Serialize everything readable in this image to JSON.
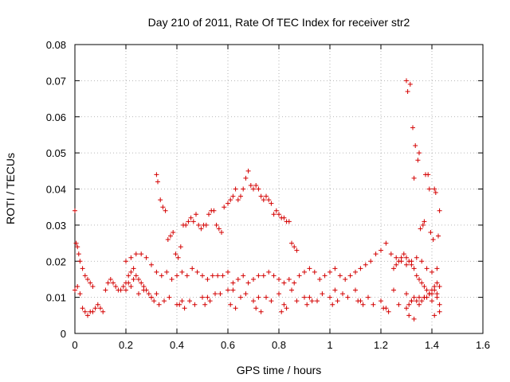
{
  "chart_data": {
    "type": "scatter",
    "title": "Day 210 of 2011, Rate Of TEC Index for receiver str2",
    "xlabel": "GPS time / hours",
    "ylabel": "ROTI / TECUs",
    "xlim": [
      0,
      1.6
    ],
    "ylim": [
      0,
      0.08
    ],
    "xticks": [
      0,
      0.2,
      0.4,
      0.6,
      0.8,
      1,
      1.2,
      1.4,
      1.6
    ],
    "xtick_labels": [
      "0",
      "0.2",
      "0.4",
      "0.6",
      "0.8",
      "1",
      "1.2",
      "1.4",
      "1.6"
    ],
    "yticks": [
      0,
      0.01,
      0.02,
      0.03,
      0.04,
      0.05,
      0.06,
      0.07,
      0.08
    ],
    "ytick_labels": [
      "0",
      "0.01",
      "0.02",
      "0.03",
      "0.04",
      "0.05",
      "0.06",
      "0.07",
      "0.08"
    ],
    "grid": true,
    "marker": "+",
    "color": "#d40000",
    "series": [
      {
        "name": "str2",
        "x": [
          0.0,
          0.005,
          0.01,
          0.015,
          0.02,
          0.03,
          0.04,
          0.05,
          0.06,
          0.07,
          0.0,
          0.01,
          0.02,
          0.03,
          0.04,
          0.05,
          0.06,
          0.07,
          0.08,
          0.09,
          0.1,
          0.11,
          0.12,
          0.13,
          0.14,
          0.15,
          0.16,
          0.17,
          0.18,
          0.19,
          0.2,
          0.21,
          0.22,
          0.23,
          0.24,
          0.25,
          0.26,
          0.27,
          0.28,
          0.29,
          0.3,
          0.32,
          0.325,
          0.335,
          0.345,
          0.355,
          0.365,
          0.375,
          0.385,
          0.395,
          0.405,
          0.415,
          0.425,
          0.435,
          0.445,
          0.455,
          0.465,
          0.475,
          0.485,
          0.495,
          0.505,
          0.515,
          0.525,
          0.535,
          0.545,
          0.555,
          0.565,
          0.575,
          0.585,
          0.6,
          0.61,
          0.62,
          0.63,
          0.64,
          0.65,
          0.66,
          0.67,
          0.68,
          0.69,
          0.7,
          0.71,
          0.72,
          0.73,
          0.74,
          0.75,
          0.76,
          0.77,
          0.78,
          0.79,
          0.8,
          0.81,
          0.82,
          0.83,
          0.84,
          0.85,
          0.86,
          0.87,
          0.2,
          0.22,
          0.24,
          0.26,
          0.28,
          0.3,
          0.32,
          0.34,
          0.36,
          0.38,
          0.4,
          0.42,
          0.44,
          0.46,
          0.48,
          0.5,
          0.52,
          0.54,
          0.56,
          0.58,
          0.6,
          0.62,
          0.64,
          0.66,
          0.68,
          0.7,
          0.72,
          0.74,
          0.76,
          0.78,
          0.8,
          0.82,
          0.84,
          0.86,
          0.88,
          0.9,
          0.92,
          0.94,
          0.96,
          0.98,
          1.0,
          1.02,
          1.04,
          1.06,
          1.08,
          1.1,
          1.12,
          1.14,
          1.16,
          1.18,
          1.2,
          1.22,
          1.24,
          1.26,
          1.28,
          1.3,
          1.32,
          1.34,
          1.36,
          1.38,
          1.4,
          1.42,
          0.2,
          0.25,
          0.3,
          0.35,
          0.4,
          0.45,
          0.5,
          0.55,
          0.6,
          0.65,
          0.7,
          0.75,
          0.8,
          0.85,
          0.9,
          0.95,
          1.0,
          1.05,
          1.1,
          1.15,
          1.2,
          1.25,
          1.3,
          1.35,
          1.4,
          0.22,
          0.27,
          0.32,
          0.37,
          0.42,
          0.47,
          0.52,
          0.57,
          0.62,
          0.67,
          0.72,
          0.77,
          0.82,
          0.87,
          0.92,
          0.97,
          1.02,
          1.07,
          1.12,
          1.17,
          1.22,
          1.27,
          1.32,
          1.37,
          1.42,
          0.21,
          0.23,
          0.31,
          0.33,
          0.41,
          0.43,
          0.51,
          0.53,
          0.61,
          0.63,
          0.71,
          0.73,
          0.81,
          0.83,
          0.91,
          0.93,
          1.01,
          1.03,
          1.11,
          1.13,
          1.21,
          1.23,
          1.31,
          1.33,
          1.41,
          1.43,
          1.25,
          1.26,
          1.27,
          1.28,
          1.29,
          1.3,
          1.31,
          1.32,
          1.33,
          1.34,
          1.35,
          1.36,
          1.37,
          1.38,
          1.39,
          1.4,
          1.41,
          1.42,
          1.43,
          1.3,
          1.31,
          1.32,
          1.33,
          1.34,
          1.35,
          1.36,
          1.37,
          1.38,
          1.39,
          1.4,
          1.41,
          1.42,
          1.43,
          1.3,
          1.305,
          1.315,
          1.325,
          1.33,
          1.335,
          1.345,
          1.35,
          1.355,
          1.365,
          1.37,
          1.375,
          1.385,
          1.39,
          1.395,
          1.405,
          1.41,
          1.415,
          1.425,
          1.43
        ],
        "y": [
          0.034,
          0.025,
          0.024,
          0.022,
          0.02,
          0.018,
          0.016,
          0.015,
          0.014,
          0.013,
          0.012,
          0.013,
          0.011,
          0.007,
          0.006,
          0.005,
          0.006,
          0.006,
          0.007,
          0.008,
          0.007,
          0.006,
          0.012,
          0.014,
          0.015,
          0.014,
          0.013,
          0.012,
          0.012,
          0.013,
          0.014,
          0.016,
          0.017,
          0.018,
          0.016,
          0.015,
          0.014,
          0.013,
          0.012,
          0.011,
          0.01,
          0.044,
          0.042,
          0.037,
          0.035,
          0.034,
          0.026,
          0.027,
          0.028,
          0.022,
          0.021,
          0.024,
          0.03,
          0.03,
          0.031,
          0.032,
          0.031,
          0.033,
          0.03,
          0.029,
          0.03,
          0.03,
          0.033,
          0.034,
          0.034,
          0.03,
          0.029,
          0.028,
          0.035,
          0.036,
          0.037,
          0.038,
          0.04,
          0.037,
          0.038,
          0.04,
          0.043,
          0.045,
          0.041,
          0.04,
          0.041,
          0.04,
          0.038,
          0.037,
          0.038,
          0.037,
          0.036,
          0.033,
          0.034,
          0.033,
          0.032,
          0.032,
          0.031,
          0.031,
          0.025,
          0.024,
          0.023,
          0.02,
          0.021,
          0.022,
          0.022,
          0.021,
          0.019,
          0.017,
          0.016,
          0.017,
          0.015,
          0.016,
          0.017,
          0.016,
          0.018,
          0.017,
          0.016,
          0.015,
          0.016,
          0.016,
          0.016,
          0.017,
          0.014,
          0.015,
          0.016,
          0.014,
          0.015,
          0.016,
          0.016,
          0.017,
          0.016,
          0.015,
          0.014,
          0.015,
          0.014,
          0.016,
          0.017,
          0.018,
          0.017,
          0.015,
          0.016,
          0.017,
          0.018,
          0.016,
          0.015,
          0.016,
          0.017,
          0.018,
          0.019,
          0.02,
          0.022,
          0.023,
          0.025,
          0.022,
          0.021,
          0.02,
          0.019,
          0.02,
          0.021,
          0.02,
          0.018,
          0.017,
          0.018,
          0.012,
          0.011,
          0.01,
          0.009,
          0.008,
          0.009,
          0.01,
          0.011,
          0.012,
          0.01,
          0.009,
          0.01,
          0.011,
          0.012,
          0.01,
          0.009,
          0.01,
          0.011,
          0.012,
          0.01,
          0.009,
          0.012,
          0.011,
          0.01,
          0.009,
          0.013,
          0.012,
          0.011,
          0.01,
          0.009,
          0.008,
          0.01,
          0.011,
          0.012,
          0.011,
          0.01,
          0.009,
          0.008,
          0.009,
          0.01,
          0.011,
          0.012,
          0.01,
          0.009,
          0.008,
          0.007,
          0.008,
          0.009,
          0.01,
          0.011,
          0.014,
          0.015,
          0.009,
          0.008,
          0.008,
          0.007,
          0.008,
          0.009,
          0.008,
          0.007,
          0.007,
          0.006,
          0.006,
          0.007,
          0.008,
          0.009,
          0.008,
          0.009,
          0.009,
          0.008,
          0.007,
          0.006,
          0.005,
          0.004,
          0.005,
          0.006,
          0.018,
          0.019,
          0.02,
          0.021,
          0.022,
          0.021,
          0.02,
          0.019,
          0.018,
          0.016,
          0.015,
          0.014,
          0.013,
          0.012,
          0.011,
          0.012,
          0.013,
          0.014,
          0.013,
          0.007,
          0.008,
          0.009,
          0.01,
          0.009,
          0.008,
          0.009,
          0.01,
          0.01,
          0.011,
          0.011,
          0.012,
          0.01,
          0.008,
          0.07,
          0.067,
          0.069,
          0.057,
          0.043,
          0.052,
          0.048,
          0.05,
          0.029,
          0.03,
          0.031,
          0.044,
          0.044,
          0.04,
          0.028,
          0.026,
          0.04,
          0.039,
          0.027,
          0.034
        ]
      }
    ]
  }
}
